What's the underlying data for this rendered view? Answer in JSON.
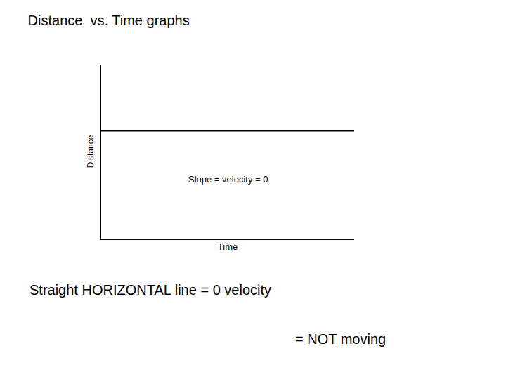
{
  "chart_data": {
    "type": "line",
    "title": "Distance  vs. Time graphs",
    "xlabel": "Time",
    "ylabel": "Distance",
    "x": [
      0.0,
      1.0
    ],
    "values": [
      0.62,
      0.62
    ],
    "color": "#000000",
    "xlim": [
      0,
      1
    ],
    "ylim": [
      0,
      1
    ],
    "xticks": [],
    "yticks": [],
    "tick_labels": false,
    "grid": false,
    "annotations": [
      "Slope = velocity = 0",
      "Straight HORIZONTAL line = 0 velocity",
      "= NOT moving"
    ]
  }
}
